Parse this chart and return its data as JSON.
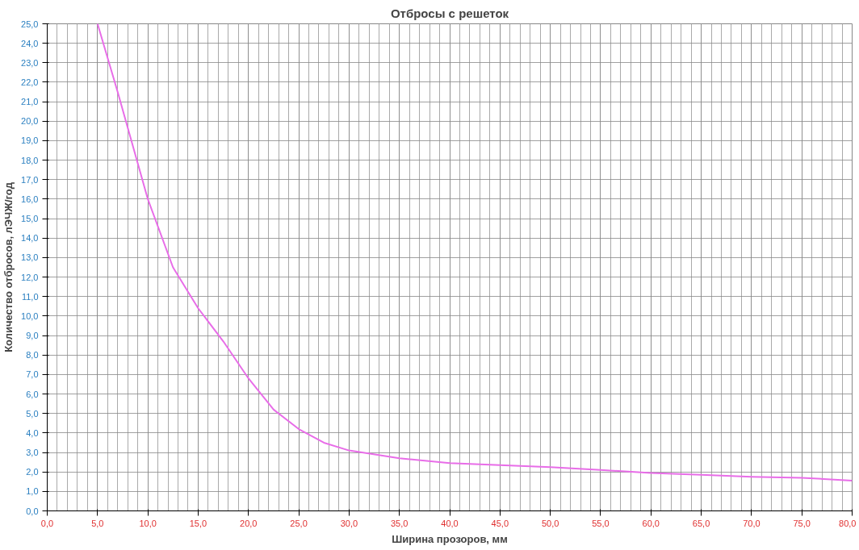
{
  "chart_data": {
    "type": "line",
    "title": "Отбросы с решеток",
    "xlabel": "Ширина прозоров, мм",
    "ylabel": "Количество отбросов, лЭЧЖ/год",
    "x": [
      5,
      7,
      10,
      12.5,
      15,
      17.5,
      20,
      22.5,
      25,
      27.5,
      30,
      35,
      40,
      45,
      50,
      55,
      60,
      65,
      70,
      75,
      80
    ],
    "series": [
      {
        "color": "#e86de8",
        "values": [
          25,
          21.5,
          16,
          12.5,
          10.4,
          8.7,
          6.8,
          5.2,
          4.2,
          3.5,
          3.1,
          2.7,
          2.45,
          2.35,
          2.25,
          2.1,
          1.95,
          1.85,
          1.75,
          1.7,
          1.55
        ]
      }
    ],
    "xlim": [
      0,
      80
    ],
    "ylim": [
      0,
      25
    ],
    "xticks": [
      {
        "value": 0,
        "label": "0,0"
      },
      {
        "value": 5,
        "label": "5,0"
      },
      {
        "value": 10,
        "label": "10,0"
      },
      {
        "value": 15,
        "label": "15,0"
      },
      {
        "value": 20,
        "label": "20,0"
      },
      {
        "value": 25,
        "label": "25,0"
      },
      {
        "value": 30,
        "label": "30,0"
      },
      {
        "value": 35,
        "label": "35,0"
      },
      {
        "value": 40,
        "label": "40,0"
      },
      {
        "value": 45,
        "label": "45,0"
      },
      {
        "value": 50,
        "label": "50,0"
      },
      {
        "value": 55,
        "label": "55,0"
      },
      {
        "value": 60,
        "label": "60,0"
      },
      {
        "value": 65,
        "label": "65,0"
      },
      {
        "value": 70,
        "label": "70,0"
      },
      {
        "value": 75,
        "label": "75,0"
      },
      {
        "value": 80,
        "label": "80,0"
      }
    ],
    "yticks": [
      {
        "value": 0,
        "label": "0,0"
      },
      {
        "value": 1,
        "label": "1,0"
      },
      {
        "value": 2,
        "label": "2,0"
      },
      {
        "value": 3,
        "label": "3,0"
      },
      {
        "value": 4,
        "label": "4,0"
      },
      {
        "value": 5,
        "label": "5,0"
      },
      {
        "value": 6,
        "label": "6,0"
      },
      {
        "value": 7,
        "label": "7,0"
      },
      {
        "value": 8,
        "label": "8,0"
      },
      {
        "value": 9,
        "label": "9,0"
      },
      {
        "value": 10,
        "label": "10,0"
      },
      {
        "value": 11,
        "label": "11,0"
      },
      {
        "value": 12,
        "label": "12,0"
      },
      {
        "value": 13,
        "label": "13,0"
      },
      {
        "value": 14,
        "label": "14,0"
      },
      {
        "value": 15,
        "label": "15,0"
      },
      {
        "value": 16,
        "label": "16,0"
      },
      {
        "value": 17,
        "label": "17,0"
      },
      {
        "value": 18,
        "label": "18,0"
      },
      {
        "value": 19,
        "label": "19,0"
      },
      {
        "value": 20,
        "label": "20,0"
      },
      {
        "value": 21,
        "label": "21,0"
      },
      {
        "value": 22,
        "label": "22,0"
      },
      {
        "value": 23,
        "label": "23,0"
      },
      {
        "value": 24,
        "label": "24,0"
      },
      {
        "value": 25,
        "label": "25,0"
      }
    ],
    "grid": true,
    "marker": "none",
    "line_style": "solid"
  }
}
